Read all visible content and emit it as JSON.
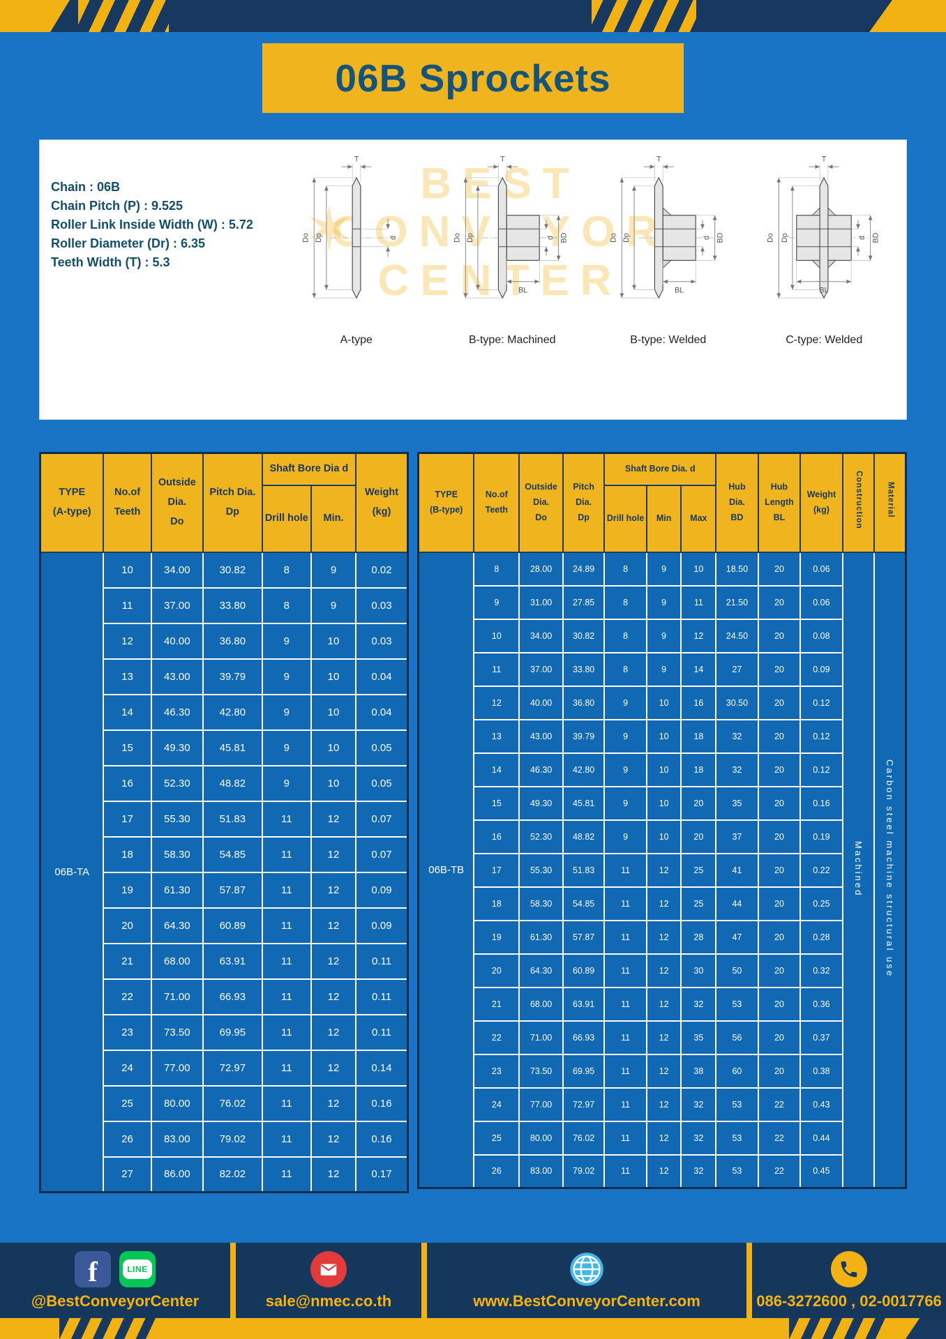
{
  "title": "06B Sprockets",
  "specs": {
    "lines": [
      "Chain : 06B",
      "Chain Pitch (P) : 9.525",
      "Roller Link Inside Width (W) : 5.72",
      "Roller Diameter (Dr) : 6.35",
      "Teeth Width (T) : 5.3"
    ]
  },
  "watermark": {
    "star": "✶",
    "lines": [
      "BEST",
      "CONVEYOR",
      "CENTER"
    ]
  },
  "drawings": {
    "labels": {
      "t": "T",
      "do": "Do",
      "dp": "Dp",
      "d": "d",
      "bd": "BD",
      "bl": "BL"
    },
    "captions": [
      "A-type",
      "B-type: Machined",
      "B-type: Welded",
      "C-type: Welded"
    ]
  },
  "table_a": {
    "headers": {
      "type": "TYPE\n(A-type)",
      "teeth": "No.of\nTeeth",
      "outside": "Outside\nDia.\nDo",
      "pitch": "Pitch Dia.\nDp",
      "bore_group": "Shaft Bore Dia d",
      "drill": "Drill hole",
      "min": "Min.",
      "weight": "Weight\n(kg)"
    },
    "type_value": "06B-TA",
    "rows": [
      [
        "10",
        "34.00",
        "30.82",
        "8",
        "9",
        "0.02"
      ],
      [
        "11",
        "37.00",
        "33.80",
        "8",
        "9",
        "0.03"
      ],
      [
        "12",
        "40.00",
        "36.80",
        "9",
        "10",
        "0.03"
      ],
      [
        "13",
        "43.00",
        "39.79",
        "9",
        "10",
        "0.04"
      ],
      [
        "14",
        "46.30",
        "42.80",
        "9",
        "10",
        "0.04"
      ],
      [
        "15",
        "49.30",
        "45.81",
        "9",
        "10",
        "0.05"
      ],
      [
        "16",
        "52.30",
        "48.82",
        "9",
        "10",
        "0.05"
      ],
      [
        "17",
        "55.30",
        "51.83",
        "11",
        "12",
        "0.07"
      ],
      [
        "18",
        "58.30",
        "54.85",
        "11",
        "12",
        "0.07"
      ],
      [
        "19",
        "61.30",
        "57.87",
        "11",
        "12",
        "0.09"
      ],
      [
        "20",
        "64.30",
        "60.89",
        "11",
        "12",
        "0.09"
      ],
      [
        "21",
        "68.00",
        "63.91",
        "11",
        "12",
        "0.11"
      ],
      [
        "22",
        "71.00",
        "66.93",
        "11",
        "12",
        "0.11"
      ],
      [
        "23",
        "73.50",
        "69.95",
        "11",
        "12",
        "0.11"
      ],
      [
        "24",
        "77.00",
        "72.97",
        "11",
        "12",
        "0.14"
      ],
      [
        "25",
        "80.00",
        "76.02",
        "11",
        "12",
        "0.16"
      ],
      [
        "26",
        "83.00",
        "79.02",
        "11",
        "12",
        "0.16"
      ],
      [
        "27",
        "86.00",
        "82.02",
        "11",
        "12",
        "0.17"
      ]
    ]
  },
  "table_b": {
    "headers": {
      "type": "TYPE\n(B-type)",
      "teeth": "No.of\nTeeth",
      "outside": "Outside\nDia.\nDo",
      "pitch": "Pitch\nDia.\nDp",
      "bore_group": "Shaft Bore Dia.  d",
      "drill": "Drill hole",
      "min": "Min",
      "max": "Max",
      "hub_dia": "Hub\nDia.\nBD",
      "hub_len": "Hub\nLength\nBL",
      "weight": "Weight\n(kg)",
      "construction": "Construction",
      "material": "Material"
    },
    "type_value": "06B-TB",
    "construction_value": "Machined",
    "material_value": "Carbon steel machine structural use",
    "rows": [
      [
        "8",
        "28.00",
        "24.89",
        "8",
        "9",
        "10",
        "18.50",
        "20",
        "0.06"
      ],
      [
        "9",
        "31.00",
        "27.85",
        "8",
        "9",
        "11",
        "21.50",
        "20",
        "0.06"
      ],
      [
        "10",
        "34.00",
        "30.82",
        "8",
        "9",
        "12",
        "24.50",
        "20",
        "0.08"
      ],
      [
        "11",
        "37.00",
        "33.80",
        "8",
        "9",
        "14",
        "27",
        "20",
        "0.09"
      ],
      [
        "12",
        "40.00",
        "36.80",
        "9",
        "10",
        "16",
        "30.50",
        "20",
        "0.12"
      ],
      [
        "13",
        "43.00",
        "39.79",
        "9",
        "10",
        "18",
        "32",
        "20",
        "0.12"
      ],
      [
        "14",
        "46.30",
        "42.80",
        "9",
        "10",
        "18",
        "32",
        "20",
        "0.12"
      ],
      [
        "15",
        "49.30",
        "45.81",
        "9",
        "10",
        "20",
        "35",
        "20",
        "0.16"
      ],
      [
        "16",
        "52.30",
        "48.82",
        "9",
        "10",
        "20",
        "37",
        "20",
        "0.19"
      ],
      [
        "17",
        "55.30",
        "51.83",
        "11",
        "12",
        "25",
        "41",
        "20",
        "0.22"
      ],
      [
        "18",
        "58.30",
        "54.85",
        "11",
        "12",
        "25",
        "44",
        "20",
        "0.25"
      ],
      [
        "19",
        "61.30",
        "57.87",
        "11",
        "12",
        "28",
        "47",
        "20",
        "0.28"
      ],
      [
        "20",
        "64.30",
        "60.89",
        "11",
        "12",
        "30",
        "50",
        "20",
        "0.32"
      ],
      [
        "21",
        "68.00",
        "63.91",
        "11",
        "12",
        "32",
        "53",
        "20",
        "0.36"
      ],
      [
        "22",
        "71.00",
        "66.93",
        "11",
        "12",
        "35",
        "56",
        "20",
        "0.37"
      ],
      [
        "23",
        "73.50",
        "69.95",
        "11",
        "12",
        "38",
        "60",
        "20",
        "0.38"
      ],
      [
        "24",
        "77.00",
        "72.97",
        "11",
        "12",
        "32",
        "53",
        "22",
        "0.43"
      ],
      [
        "25",
        "80.00",
        "76.02",
        "11",
        "12",
        "32",
        "53",
        "22",
        "0.44"
      ],
      [
        "26",
        "83.00",
        "79.02",
        "11",
        "12",
        "32",
        "53",
        "22",
        "0.45"
      ]
    ]
  },
  "footer": {
    "facebook_letter": "f",
    "line_text": "LINE",
    "items": [
      {
        "label": "@BestConveyorCenter"
      },
      {
        "label": "sale@nmec.co.th"
      },
      {
        "label": "www.BestConveyorCenter.com"
      },
      {
        "label": "086-3272600 , 02-0017766"
      }
    ]
  },
  "colors": {
    "page_blue": "#1974c5",
    "navy": "#17395f",
    "yellow": "#f2b213",
    "cell_blue": "#1169b4",
    "header_yellow": "#f0b41e"
  }
}
